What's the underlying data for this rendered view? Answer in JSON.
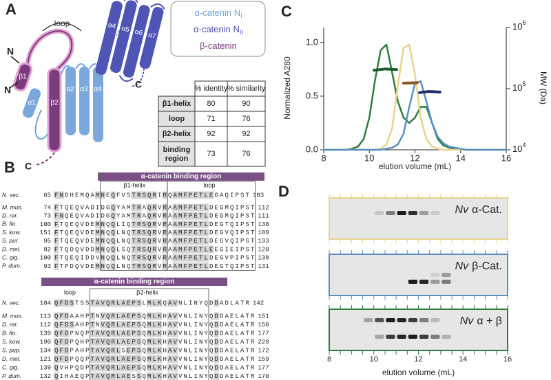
{
  "panel_a": {
    "label": "A",
    "loop_label": "loop",
    "termini": [
      "N",
      "N",
      "C",
      "C"
    ],
    "helices": [
      "β1",
      "α1",
      "β2",
      "α2",
      "α3",
      "α4",
      "α4",
      "α5",
      "α6",
      "α7"
    ],
    "legend": [
      {
        "text": "α-catenin N",
        "sub": "I",
        "color": "#6fa3dc"
      },
      {
        "text": "α-catenin N",
        "sub": "II",
        "color": "#4b4fae"
      },
      {
        "text": "β-catenin",
        "color": "#7b3a78"
      }
    ],
    "table": {
      "header": [
        "% identity",
        "% similarity"
      ],
      "rows": [
        [
          "β1-helix",
          80,
          90
        ],
        [
          "loop",
          71,
          76
        ],
        [
          "β2-helix",
          92,
          92
        ],
        [
          "binding region",
          73,
          76
        ]
      ]
    }
  },
  "panel_b": {
    "label": "B",
    "blocks": [
      {
        "region": "α-catenin binding region",
        "segments": [
          "β1-helix",
          "loop"
        ],
        "rows": [
          {
            "species": "N. vec.",
            "start": 65,
            "seq": "FNDHEMQAMNEQFVSTRSQRIRQAMFPETLEGAQIPST",
            "end": 103
          },
          {
            "species": "M. mus.",
            "start": 74,
            "seq": "FTQEQVADIDGQYAMTRAQRVRAAMFPETLDEGMQIPST",
            "end": 112
          },
          {
            "species": "D. rer.",
            "start": 73,
            "seq": "FNQEQVADIDGQYAMTRAQRVRAAMFPETLDEGMQIPST",
            "end": 111
          },
          {
            "species": "B. flo.",
            "start": 100,
            "seq": "FTQEQVDEMNQQLIQTRSQRVRAAMFPETLDEGTQIPST",
            "end": 138
          },
          {
            "species": "S. kow.",
            "start": 151,
            "seq": "FTQEQVDEMNQQLNQTRSQRVRAAMFPETLDEGVQIPST",
            "end": 189
          },
          {
            "species": "S. pur.",
            "start": 95,
            "seq": "FTQEQVDEMNQQLNQTRSQRVRAAMFPETLDEGVQIPST",
            "end": 133
          },
          {
            "species": "D. mel.",
            "start": 82,
            "seq": "FTQDQVDDMNQQLSQTRSQRVRAAMFPETLEEGIEIPST",
            "end": 120
          },
          {
            "species": "C. gig.",
            "start": 100,
            "seq": "FTQEQIDDVNQQLNQTRSQRVRAAMFPETLDEGVPIPST",
            "end": 138
          },
          {
            "species": "P. dum.",
            "start": 93,
            "seq": "FTPDQVDEMNQQLNQTRSQRVRAAMFPETLDEGTQIPST",
            "end": 131
          }
        ]
      },
      {
        "region": "α-catenin binding region",
        "segments": [
          "loop",
          "β2-helix"
        ],
        "rows": [
          {
            "species": "N. vec.",
            "start": 104,
            "seq": "QFDSTSSTAVQRLAEPSLMLKQAVNLINYQDDADLATR",
            "end": 142
          },
          {
            "species": "M. mus.",
            "start": 113,
            "seq": "QFDAAHPTNVQRLAEPSQMLKHAVVNLINYQDDAELATR",
            "end": 151
          },
          {
            "species": "D. rer.",
            "start": 112,
            "seq": "QFDSAHPTNVQRLAEPSQMLKHAVVNLINYQDDAELATR",
            "end": 150
          },
          {
            "species": "B. flo.",
            "start": 139,
            "seq": "QFDPNQPTAVQRLAEPSQMLKHAVVNLINYQDDAELATR",
            "end": 177
          },
          {
            "species": "S. kow.",
            "start": 190,
            "seq": "QFDPQHPTAVQRLAEPSQMLKHAVVNLINYQDDAELATR",
            "end": 228
          },
          {
            "species": "S. pup.",
            "start": 134,
            "seq": "QFDPAHPTAVQRLSEPSQMLKHAVVNLINYQDDAELATR",
            "end": 172
          },
          {
            "species": "D. mel.",
            "start": 121,
            "seq": "QFDPQQPTAVQRLAEPSQMLKHAVVNLINYQDDAELATR",
            "end": 159
          },
          {
            "species": "C. gig.",
            "start": 139,
            "seq": "QVHPQDPTAVQRLAEPSQMLKHAVVNLINYQDDAELATR",
            "end": 177
          },
          {
            "species": "P. dum.",
            "start": 132,
            "seq": "QIHAEQPTAVQRLAESSQMLKHAVVNLINYQDDAELATR",
            "end": 170
          }
        ]
      }
    ]
  },
  "chart_data": {
    "type": "line",
    "label": "C",
    "xlabel": "elution volume (mL)",
    "ylabel": "Normalized A280",
    "y2label": "MW (Da)",
    "x": [
      8,
      8.25,
      8.5,
      8.75,
      9,
      9.25,
      9.5,
      9.75,
      10,
      10.25,
      10.5,
      10.75,
      11,
      11.25,
      11.5,
      11.75,
      12,
      12.25,
      12.5,
      12.75,
      13,
      13.25,
      13.5,
      13.75,
      14,
      14.25,
      14.5,
      14.75,
      15,
      15.25,
      15.5,
      15.75,
      16
    ],
    "xlim": [
      8,
      16
    ],
    "xticks": [
      8,
      10,
      12,
      14,
      16
    ],
    "ylim": [
      0,
      1.14
    ],
    "yticks": [
      {
        "value": 0,
        "label": "0.0"
      },
      {
        "value": 0.5,
        "label": "0.5"
      },
      {
        "value": 1,
        "label": "1.0"
      }
    ],
    "y2lim": [
      10000,
      1000000
    ],
    "y2log": true,
    "y2ticks": [
      {
        "value": 10000,
        "label": "10",
        "exponent": "4"
      },
      {
        "value": 100000,
        "label": "10",
        "exponent": "5"
      },
      {
        "value": 1000000,
        "label": "10",
        "exponent": "6"
      }
    ],
    "series": [
      {
        "color": "#2e7d3a",
        "values": [
          0,
          0,
          0,
          0,
          0,
          0.01,
          0.03,
          0.1,
          0.3,
          0.65,
          0.93,
          0.98,
          0.72,
          0.45,
          0.3,
          0.25,
          0.3,
          0.4,
          0.4,
          0.25,
          0.1,
          0.04,
          0.02,
          0.01,
          0,
          0,
          0,
          0,
          0,
          0,
          0,
          0,
          0
        ]
      },
      {
        "color": "#e8d48a",
        "values": [
          0,
          0,
          0,
          0,
          0,
          0,
          0,
          0,
          0,
          0,
          0.01,
          0.05,
          0.2,
          0.6,
          0.95,
          0.98,
          0.7,
          0.3,
          0.1,
          0.03,
          0.01,
          0,
          0,
          0,
          0,
          0,
          0,
          0,
          0,
          0,
          0,
          0,
          0
        ]
      },
      {
        "color": "#5b8fc4",
        "values": [
          0,
          0,
          0,
          0,
          0,
          0,
          0,
          0,
          0,
          0,
          0,
          0.01,
          0.02,
          0.05,
          0.15,
          0.4,
          0.62,
          0.64,
          0.45,
          0.25,
          0.12,
          0.06,
          0.03,
          0.02,
          0.01,
          0,
          0,
          0,
          0,
          0,
          0,
          0,
          0
        ]
      },
      {
        "color": "#1f5a2a",
        "axis": "y2",
        "x": [
          10.2,
          10.7,
          11.2
        ],
        "values": [
          200000,
          210000,
          205000
        ]
      },
      {
        "color": "#8a5a1e",
        "axis": "y2",
        "x": [
          11.5,
          12.1
        ],
        "values": [
          123000,
          125000
        ]
      },
      {
        "color": "#1c2a6b",
        "axis": "y2",
        "x": [
          12.2,
          12.6,
          13.1
        ],
        "values": [
          86000,
          90000,
          88000
        ]
      }
    ]
  },
  "panel_d": {
    "label": "D",
    "xlabel": "elution volume (mL)",
    "xlim": [
      8,
      16
    ],
    "xticks": [
      8,
      10,
      12,
      14,
      16
    ],
    "gels": [
      {
        "species": "Nv",
        "protein": "α-Cat.",
        "color": "#e8d48a"
      },
      {
        "species": "Nv",
        "protein": "β-Cat.",
        "color": "#5b8fc4"
      },
      {
        "species": "Nv",
        "protein": "α + β",
        "color": "#2e7d3a"
      }
    ]
  }
}
